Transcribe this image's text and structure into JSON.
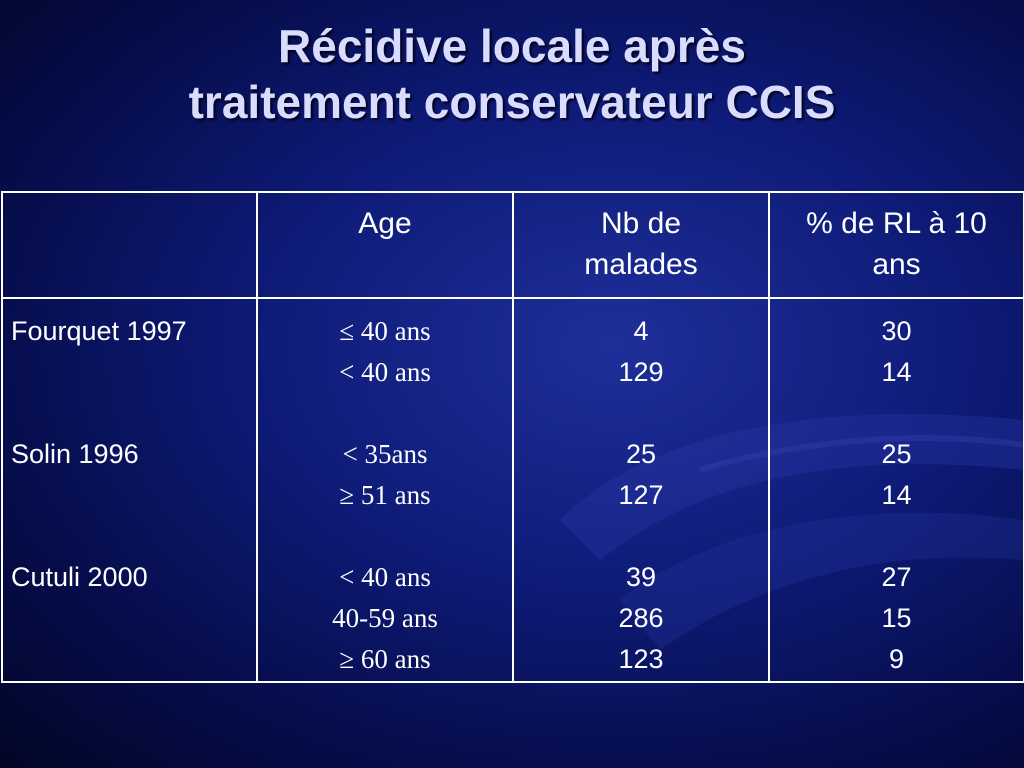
{
  "slide": {
    "title_line1": "Récidive locale après",
    "title_line2": "traitement conservateur CCIS"
  },
  "table": {
    "headers": [
      "",
      "Age",
      "Nb de malades",
      "% de RL à 10 ans"
    ],
    "header_lines": {
      "age": [
        "Age"
      ],
      "nb": [
        "Nb de",
        "malades"
      ],
      "pct": [
        "% de RL à 10",
        "ans"
      ]
    },
    "groups": [
      {
        "study": "Fourquet 1997",
        "rows": [
          {
            "age": "≤ 40 ans",
            "nb": "4",
            "pct": "30"
          },
          {
            "age": "< 40 ans",
            "nb": "129",
            "pct": "14"
          }
        ]
      },
      {
        "study": "Solin 1996",
        "rows": [
          {
            "age": "< 35ans",
            "nb": "25",
            "pct": "25"
          },
          {
            "age": "≥ 51 ans",
            "nb": "127",
            "pct": "14"
          }
        ]
      },
      {
        "study": "Cutuli 2000",
        "rows": [
          {
            "age": "< 40 ans",
            "nb": "39",
            "pct": "27"
          },
          {
            "age": "40-59 ans",
            "nb": "286",
            "pct": "15"
          },
          {
            "age": "≥ 60 ans",
            "nb": "123",
            "pct": "9"
          }
        ]
      }
    ]
  },
  "colors": {
    "background_center": "#1f2f9a",
    "background_edge": "#020626",
    "title": "#d9dcff",
    "text": "#ffffff",
    "grid": "#ffffff"
  }
}
